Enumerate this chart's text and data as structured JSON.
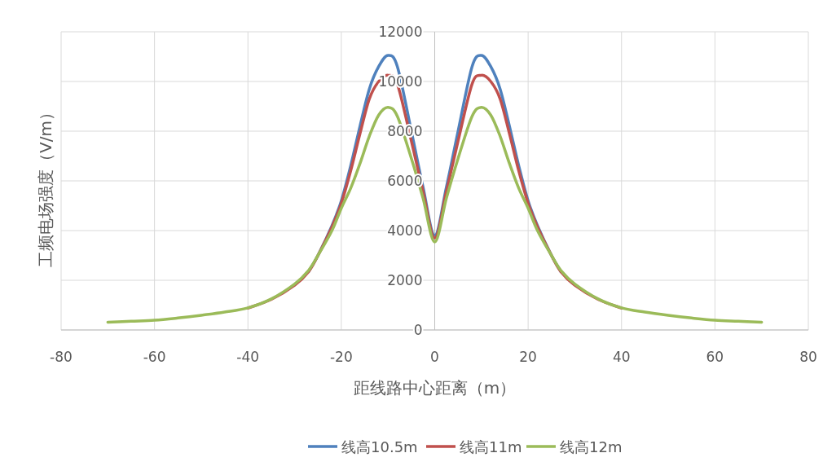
{
  "chart_data": {
    "type": "line",
    "xlabel": "距线路中心距离（m）",
    "ylabel": "工频电场强度（V/m）",
    "xlim": [
      -80,
      80
    ],
    "ylim": [
      0,
      12000
    ],
    "xticks": [
      -80,
      -60,
      -40,
      -20,
      0,
      20,
      40,
      60,
      80
    ],
    "yticks": [
      0,
      2000,
      4000,
      6000,
      8000,
      10000,
      12000
    ],
    "grid": true,
    "legend": "bottom",
    "line_style": "solid",
    "series": [
      {
        "name": "线高10.5m",
        "color": "#4f81bd",
        "x": [
          -27,
          -25,
          -22,
          -20,
          -18,
          -16,
          -14,
          -12,
          -10,
          -8,
          -5,
          -2.5,
          0,
          2.5,
          5,
          8,
          10,
          12,
          14,
          16,
          18,
          20,
          22,
          25,
          27
        ],
        "values": [
          2350,
          3000,
          4200,
          5200,
          6600,
          8200,
          9700,
          10600,
          11050,
          10600,
          8000,
          5750,
          3800,
          5750,
          8000,
          10600,
          11050,
          10600,
          9700,
          8200,
          6600,
          5200,
          4200,
          3000,
          2350
        ]
      },
      {
        "name": "线高11m",
        "color": "#c0504d",
        "x": [
          -40,
          -35,
          -30,
          -27,
          -25,
          -22,
          -20,
          -18,
          -16,
          -14,
          -12,
          -10,
          -8,
          -5,
          -2.5,
          0,
          2.5,
          5,
          8,
          10,
          12,
          14,
          16,
          18,
          20,
          22,
          25,
          27,
          30,
          35,
          40
        ],
        "values": [
          880,
          1230,
          1800,
          2350,
          3000,
          4150,
          5100,
          6400,
          7900,
          9300,
          10000,
          10250,
          9900,
          7600,
          5580,
          3700,
          5580,
          7600,
          9900,
          10250,
          10000,
          9300,
          7900,
          6400,
          5100,
          4150,
          3000,
          2350,
          1800,
          1230,
          880
        ]
      },
      {
        "name": "线高12m",
        "color": "#9bbb59",
        "x": [
          -70,
          -65,
          -60,
          -55,
          -50,
          -45,
          -40,
          -35,
          -30,
          -27,
          -25,
          -22,
          -20,
          -18,
          -16,
          -14,
          -12,
          -10,
          -8,
          -5,
          -2.5,
          0,
          2.5,
          5,
          8,
          10,
          12,
          14,
          16,
          18,
          20,
          22,
          25,
          27,
          30,
          35,
          40,
          45,
          50,
          55,
          60,
          65,
          70
        ],
        "values": [
          310,
          350,
          390,
          480,
          590,
          720,
          890,
          1250,
          1850,
          2400,
          3000,
          4000,
          4900,
          5700,
          6700,
          7800,
          8650,
          8960,
          8600,
          6900,
          5300,
          3540,
          5300,
          6900,
          8600,
          8960,
          8650,
          7800,
          6700,
          5700,
          4900,
          4000,
          3000,
          2400,
          1850,
          1250,
          890,
          720,
          590,
          480,
          390,
          350,
          310
        ]
      }
    ]
  }
}
